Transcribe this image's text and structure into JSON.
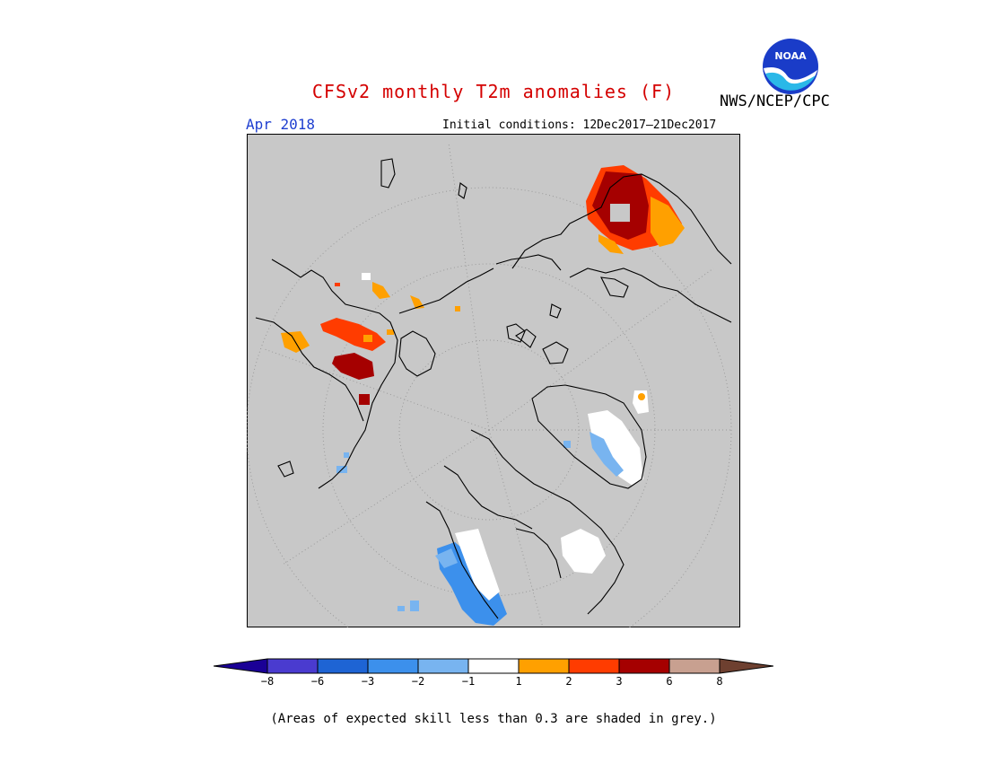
{
  "header": {
    "title": "CFSv2 monthly T2m anomalies (F)",
    "agency": "NWS/NCEP/CPC",
    "month": "Apr 2018",
    "initial_conditions": "Initial conditions: 12Dec2017–21Dec2017",
    "logo_text": "NOAA"
  },
  "legend": {
    "ticks": [
      "−8",
      "−6",
      "−3",
      "−2",
      "−1",
      "1",
      "2",
      "3",
      "6",
      "8"
    ],
    "colors": [
      "#1a0096",
      "#4a3bcf",
      "#1e64d4",
      "#3c90ec",
      "#78b4f0",
      "#ffffff",
      "#ffa000",
      "#ff3c00",
      "#a50000",
      "#c8a090",
      "#6e4030"
    ],
    "note": "(Areas of expected skill less than 0.3 are shaded in grey.)"
  },
  "map": {
    "background": "#c8c8c8",
    "skill_grey": "#c8c8c8"
  }
}
